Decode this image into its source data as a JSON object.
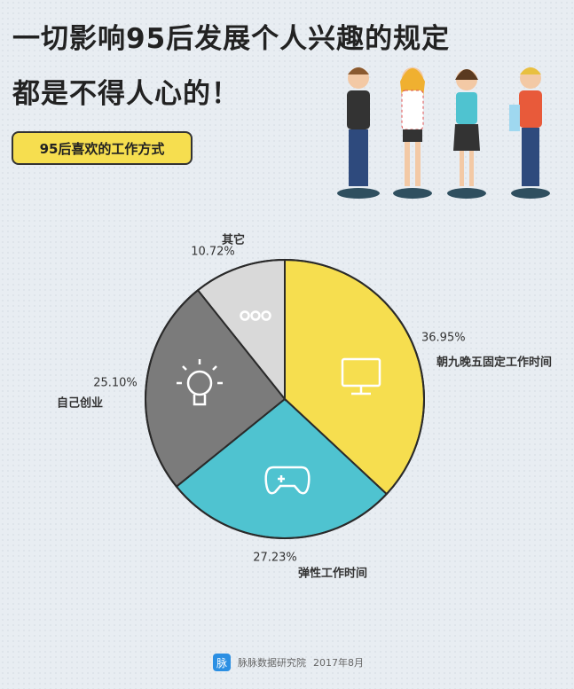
{
  "header": {
    "title_line1": "一切影响95后发展个人兴趣的规定",
    "title_line2": "都是不得人心的！",
    "badge": "95后喜欢的工作方式"
  },
  "chart_data": {
    "type": "pie",
    "categories": [
      "朝九晚五固定工作时间",
      "弹性工作时间",
      "自己创业",
      "其它"
    ],
    "values": [
      36.95,
      27.23,
      25.1,
      10.72
    ],
    "value_labels": [
      "36.95%",
      "27.23%",
      "25.10%",
      "10.72%"
    ],
    "colors": [
      "#f6de4f",
      "#4fc3d0",
      "#7b7b7b",
      "#d9d9d9"
    ]
  },
  "footer": {
    "logo": "脉",
    "source": "脉脉数据研究院",
    "date": "2017年8月"
  }
}
